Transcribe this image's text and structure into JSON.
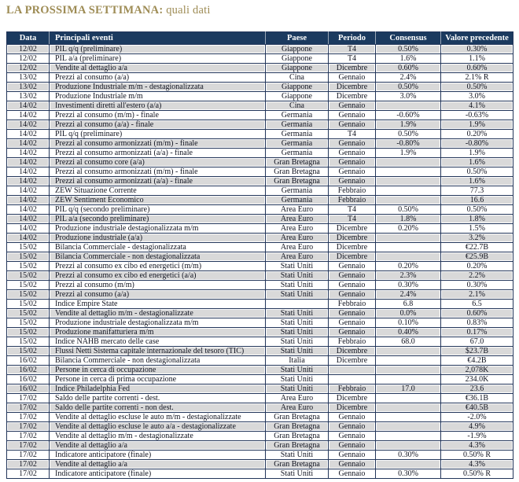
{
  "title": {
    "strong": "LA PROSSIMA SETTIMANA:",
    "rest": " quali dati"
  },
  "colors": {
    "title_text": "#9e8c55",
    "header_bg": "#1b3a5f",
    "header_text": "#ffffff",
    "row_stripe": "#d9d9d9",
    "grid_line": "#23365a",
    "cell_text": "#101320"
  },
  "table": {
    "columns": [
      "Data",
      "Principali eventi",
      "Paese",
      "Periodo",
      "Consensus",
      "Valore precedente"
    ],
    "rows": [
      [
        "12/02",
        "PIL q/q  (preliminare)",
        "Giappone",
        "T4",
        "0.50%",
        "0.30%"
      ],
      [
        "12/02",
        "PIL a/a (preliminare)",
        "Giappone",
        "T4",
        "1.6%",
        "1.1%"
      ],
      [
        "12/02",
        "Vendite al dettaglio a/a",
        "Giappone",
        "Dicembre",
        "0.60%",
        "0.60%"
      ],
      [
        "13/02",
        "Prezzi al consumo   (a/a)",
        "Cina",
        "Gennaio",
        "2.4%",
        "2.1% R"
      ],
      [
        "13/02",
        "Produzione Industriale m/m - destagionalizzata",
        "Giappone",
        "Dicembre",
        "0.50%",
        "0.50%"
      ],
      [
        "13/02",
        "Produzione Industriale m/m",
        "Giappone",
        "Dicembre",
        "3.0%",
        "3.0%"
      ],
      [
        "14/02",
        "Investimenti diretti all'estero (a/a)",
        "Cina",
        "Gennaio",
        "",
        "4.1%"
      ],
      [
        "14/02",
        "Prezzi al consumo (m/m) - finale",
        "Germania",
        "Gennaio",
        "-0.60%",
        "-0.63%"
      ],
      [
        "14/02",
        "Prezzi al consumo (a/a) - finale",
        "Germania",
        "Gennaio",
        "1.9%",
        "1.9%"
      ],
      [
        "14/02",
        "PIL q/q  (preliminare)",
        "Germania",
        "T4",
        "0.50%",
        "0.20%"
      ],
      [
        "14/02",
        "Prezzi al consumo armonizzati (m/m) - finale",
        "Germania",
        "Gennaio",
        "-0.80%",
        "-0.80%"
      ],
      [
        "14/02",
        "Prezzi al consumo armonizzati (a/a) - finale",
        "Germania",
        "Gennaio",
        "1.9%",
        "1.9%"
      ],
      [
        "14/02",
        "Prezzi al consumo core (a/a)",
        "Gran Bretagna",
        "Gennaio",
        "",
        "1.6%"
      ],
      [
        "14/02",
        "Prezzi al consumo armonizzati (m/m) - finale",
        "Gran Bretagna",
        "Gennaio",
        "",
        "0.50%"
      ],
      [
        "14/02",
        "Prezzi al consumo armonizzati (a/a) - finale",
        "Gran Bretagna",
        "Gennaio",
        "",
        "1.6%"
      ],
      [
        "14/02",
        "ZEW Situazione Corrente",
        "Germania",
        "Febbraio",
        "",
        "77.3"
      ],
      [
        "14/02",
        "ZEW Sentiment Economico",
        "Germania",
        "Febbraio",
        "",
        "16.6"
      ],
      [
        "14/02",
        "PIL q/q (secondo preliminare)",
        "Area Euro",
        "T4",
        "0.50%",
        "0.50%"
      ],
      [
        "14/02",
        "PIL a/a (secondo preliminare)",
        "Area Euro",
        "T4",
        "1.8%",
        "1.8%"
      ],
      [
        "14/02",
        "Produzione industriale destagionalizzata m/m",
        "Area Euro",
        "Dicembre",
        "0.20%",
        "1.5%"
      ],
      [
        "14/02",
        "Produzione industriale (a/a)",
        "Area Euro",
        "Dicembre",
        "",
        "3.2%"
      ],
      [
        "15/02",
        "Bilancia Commerciale - destagionalizzata",
        "Area Euro",
        "Dicembre",
        "",
        "€22.7B"
      ],
      [
        "15/02",
        "Bilancia Commerciale - non destagionalizzata",
        "Area Euro",
        "Dicembre",
        "",
        "€25.9B"
      ],
      [
        "15/02",
        "Prezzi al consumo ex cibo ed energetici  (m/m)",
        "Stati Uniti",
        "Gennaio",
        "0.20%",
        "0.20%"
      ],
      [
        "15/02",
        "Prezzi al consumo ex cibo ed energetici  (a/a)",
        "Stati Uniti",
        "Gennaio",
        "2.3%",
        "2.2%"
      ],
      [
        "15/02",
        "Prezzi al consumo  (m/m)",
        "Stati Uniti",
        "Gennaio",
        "0.30%",
        "0.30%"
      ],
      [
        "15/02",
        "Prezzi al consumo   (a/a)",
        "Stati Uniti",
        "Gennaio",
        "2.4%",
        "2.1%"
      ],
      [
        "15/02",
        "Indice Empire State",
        "",
        "Febbraio",
        "6.8",
        "6.5"
      ],
      [
        "15/02",
        "Vendite al dettaglio m/m - destagionalizzate",
        "Stati Uniti",
        "Gennaio",
        "0.0%",
        "0.60%"
      ],
      [
        "15/02",
        "Produzione industriale destagionalizzata m/m",
        "Stati Uniti",
        "Gennaio",
        "0.10%",
        "0.83%"
      ],
      [
        "15/02",
        "Produzione manifatturiera m/m",
        "Stati Uniti",
        "Gennaio",
        "0.40%",
        "0.17%"
      ],
      [
        "15/02",
        "Indice NAHB mercato delle case",
        "Stati Uniti",
        "Febbraio",
        "68.0",
        "67.0"
      ],
      [
        "15/02",
        "Flussi Netti Sistema capitale internazionale del tesoro (TIC)",
        "Stati Uniti",
        "Dicembre",
        "",
        "$23.7B"
      ],
      [
        "16/02",
        "Bilancia Commerciale - non destagionalizzata",
        "Italia",
        "Dicembre",
        "",
        "€4.2B"
      ],
      [
        "16/02",
        "Persone in cerca di occupazione",
        "Stati Uniti",
        "",
        "",
        "2,078K"
      ],
      [
        "16/02",
        "Persone in cerca di prima occupazione",
        "Stati Uniti",
        "",
        "",
        "234.0K"
      ],
      [
        "16/02",
        "Indice Philadelphia Fed",
        "Stati Uniti",
        "Febbraio",
        "17.0",
        "23.6"
      ],
      [
        "17/02",
        "Saldo delle partite correnti - dest.",
        "Area Euro",
        "Dicembre",
        "",
        "€36.1B"
      ],
      [
        "17/02",
        "Saldo delle partite correnti -  non dest.",
        "Area Euro",
        "Dicembre",
        "",
        "€40.5B"
      ],
      [
        "17/02",
        "Vendite al dettaglio escluse le auto m/m - destagionalizzate",
        "Gran Bretagna",
        "Gennaio",
        "",
        "-2.0%"
      ],
      [
        "17/02",
        "Vendite al dettaglio escluse le auto a/a  - destagionalizzate",
        "Gran Bretagna",
        "Gennaio",
        "",
        "4.9%"
      ],
      [
        "17/02",
        "Vendite al dettaglio m/m - destagionalizzate",
        "Gran Bretagna",
        "Gennaio",
        "",
        "-1.9%"
      ],
      [
        "17/02",
        "Vendite al dettaglio a/a",
        "Gran Bretagna",
        "Gennaio",
        "",
        "4.3%"
      ],
      [
        "17/02",
        "Indicatore anticipatore (finale)",
        "Stati Uniti",
        "Gennaio",
        "0.30%",
        "0.50% R"
      ],
      [
        "17/02",
        "Vendite al dettaglio a/a",
        "Gran Bretagna",
        "Gennaio",
        "",
        "4.3%"
      ],
      [
        "17/02",
        "Indicatore anticipatore (finale)",
        "Stati Uniti",
        "Gennaio",
        "0.30%",
        "0.50% R"
      ]
    ]
  }
}
